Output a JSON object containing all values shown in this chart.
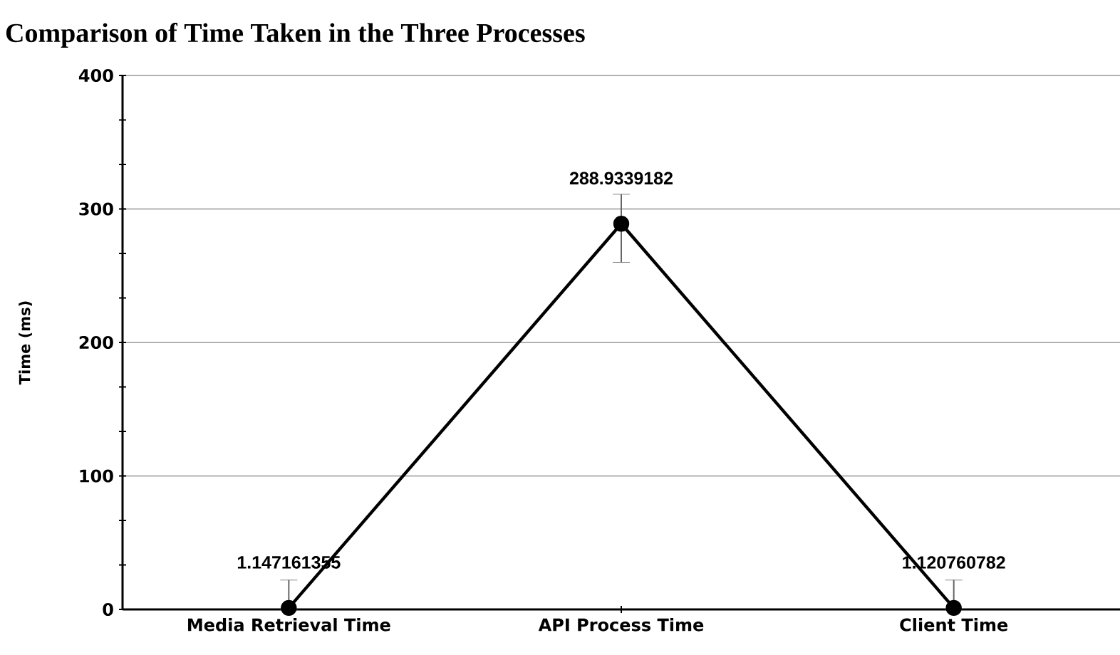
{
  "chart_data": {
    "type": "line",
    "title": "Comparison of Time Taken in the Three Processes",
    "ylabel": "Time (ms)",
    "categories": [
      "Media Retrieval Time",
      "API Process Time",
      "Client Time"
    ],
    "series": [
      {
        "color": "#000000",
        "values": [
          1.147161355,
          288.9339182,
          1.120760782
        ],
        "errors": [
          [
            0,
            22
          ],
          [
            260,
            311
          ],
          [
            0,
            22
          ]
        ]
      }
    ],
    "ylim": [
      0,
      400
    ],
    "yticks": [
      0,
      {
        "value": 33.3,
        "label": null
      },
      {
        "value": 66.7,
        "label": null
      },
      100,
      {
        "value": 133.3,
        "label": null
      },
      {
        "value": 166.7,
        "label": null
      },
      200,
      {
        "value": 233.3,
        "label": null
      },
      {
        "value": 266.7,
        "label": null
      },
      300,
      {
        "value": 333.3,
        "label": null
      },
      {
        "value": 366.7,
        "label": null
      },
      400
    ],
    "grid": "y",
    "marker": "circle",
    "line_style": "solid",
    "data_labels": true
  }
}
